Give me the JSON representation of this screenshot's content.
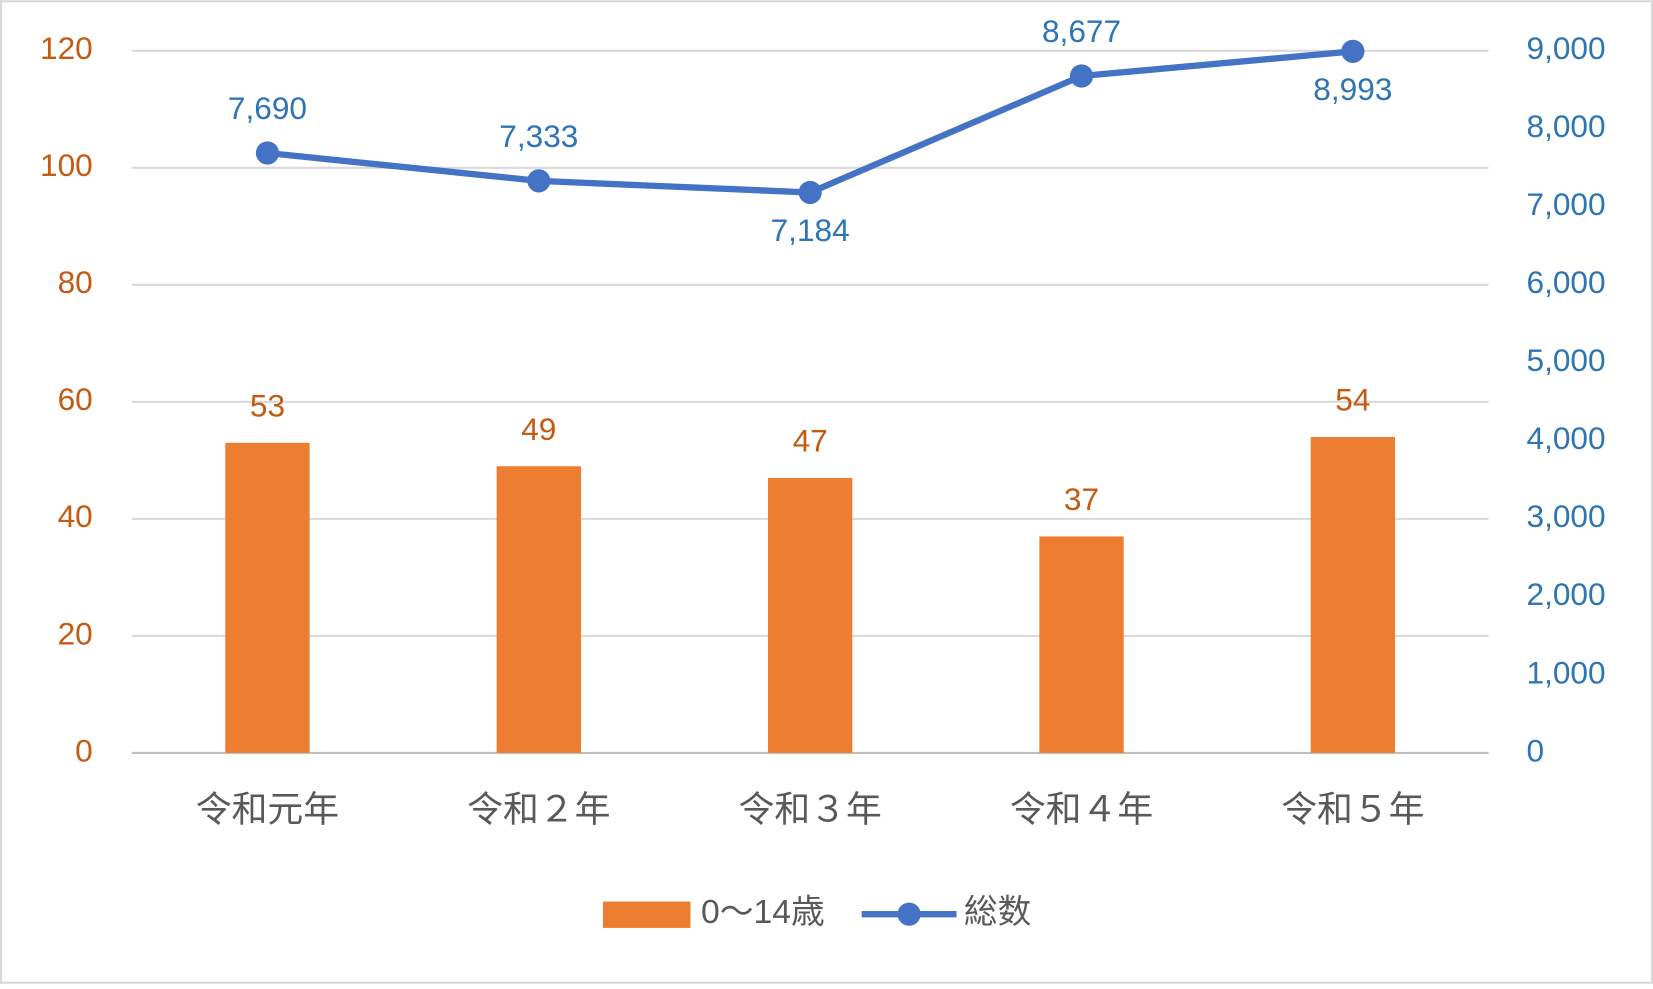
{
  "chart_data": {
    "type": "bar_line",
    "categories": [
      "令和元年",
      "令和２年",
      "令和３年",
      "令和４年",
      "令和５年"
    ],
    "series": [
      {
        "name": "0～14歳",
        "type": "bar",
        "color": "#ed7d31",
        "axis": "y",
        "values": [
          53,
          49,
          47,
          37,
          54
        ]
      },
      {
        "name": "総数",
        "type": "line",
        "color": "#4472c4",
        "axis": "y2",
        "values": [
          7690,
          7333,
          7184,
          8677,
          8993
        ],
        "value_labels": [
          "7,690",
          "7,333",
          "7,184",
          "8,677",
          "8,993"
        ]
      }
    ],
    "ylim": [
      0,
      120
    ],
    "yticks": [
      0,
      20,
      40,
      60,
      80,
      100,
      120
    ],
    "y2lim": [
      0,
      9000
    ],
    "y2ticks": [
      0,
      {
        "value": 1000,
        "label": "1,000"
      },
      {
        "value": 2000,
        "label": "2,000"
      },
      {
        "value": 3000,
        "label": "3,000"
      },
      {
        "value": 4000,
        "label": "4,000"
      },
      {
        "value": 5000,
        "label": "5,000"
      },
      {
        "value": 6000,
        "label": "6,000"
      },
      {
        "value": 7000,
        "label": "7,000"
      },
      {
        "value": 8000,
        "label": "8,000"
      },
      {
        "value": 9000,
        "label": "9,000"
      }
    ],
    "grid": true,
    "legend": "bottom"
  }
}
